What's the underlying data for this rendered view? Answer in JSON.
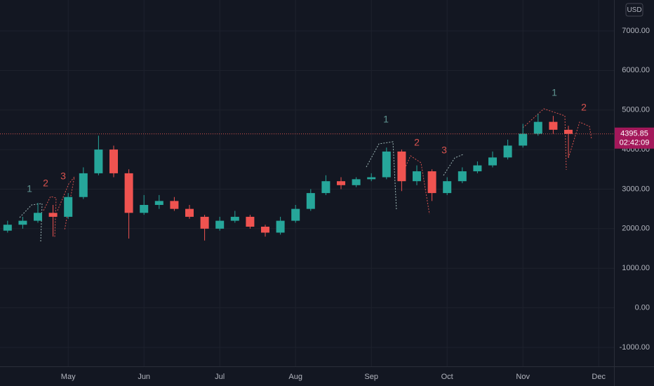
{
  "chart_data": {
    "type": "candlestick",
    "currency": "USD",
    "categories": [
      null,
      null,
      null,
      null,
      "May",
      null,
      null,
      null,
      null,
      "Jun",
      null,
      null,
      null,
      null,
      "Jul",
      null,
      null,
      null,
      null,
      "Aug",
      null,
      null,
      null,
      null,
      "Sep",
      null,
      null,
      null,
      null,
      "Oct",
      null,
      null,
      null,
      null,
      "Nov",
      null,
      null,
      null,
      null,
      "Dec"
    ],
    "open": [
      1950,
      2100,
      2200,
      2400,
      2300,
      2800,
      3400,
      4000,
      3400,
      2400,
      2600,
      2700,
      2500,
      2300,
      2000,
      2200,
      2300,
      2050,
      1900,
      2200,
      2500,
      2900,
      3200,
      3100,
      3250,
      3300,
      3950,
      3200,
      3450,
      2900,
      3200,
      3450,
      3600,
      3800,
      4100,
      4400,
      4700,
      4500,
      null,
      null
    ],
    "high": [
      2200,
      2300,
      2650,
      2600,
      2900,
      3550,
      4350,
      4100,
      3500,
      2850,
      2850,
      2800,
      2600,
      2350,
      2300,
      2450,
      2350,
      2100,
      2300,
      2600,
      3000,
      3350,
      3300,
      3300,
      3400,
      4050,
      4000,
      3600,
      3500,
      3300,
      3550,
      3700,
      3950,
      4250,
      4650,
      4900,
      4850,
      4600,
      null,
      null
    ],
    "low": [
      1900,
      2000,
      2150,
      1800,
      2250,
      2750,
      3350,
      3300,
      1750,
      2350,
      2500,
      2450,
      2250,
      1700,
      1950,
      2150,
      2000,
      1800,
      1850,
      2150,
      2450,
      2850,
      3000,
      3050,
      3200,
      3250,
      2950,
      3100,
      2700,
      2850,
      3150,
      3400,
      3550,
      3750,
      4050,
      4350,
      4400,
      3800,
      null,
      null
    ],
    "close": [
      2100,
      2200,
      2400,
      2300,
      2800,
      3400,
      4000,
      3400,
      2400,
      2600,
      2700,
      2500,
      2300,
      2000,
      2200,
      2300,
      2050,
      1900,
      2200,
      2500,
      2900,
      3200,
      3100,
      3250,
      3300,
      3950,
      3200,
      3450,
      2900,
      3200,
      3450,
      3600,
      3800,
      4100,
      4400,
      4700,
      4500,
      4395.85,
      null,
      null
    ],
    "up_color": "#26a69a",
    "down_color": "#ef5350",
    "ylim": [
      -1480,
      7780
    ],
    "yticks": [
      {
        "value": -1000,
        "label": "-1000.00"
      },
      {
        "value": 0,
        "label": "0.00"
      },
      {
        "value": 1000,
        "label": "1000.00"
      },
      {
        "value": 2000,
        "label": "2000.00"
      },
      {
        "value": 3000,
        "label": "3000.00"
      },
      {
        "value": 4000,
        "label": "4000.00"
      },
      {
        "value": 5000,
        "label": "5000.00"
      },
      {
        "value": 6000,
        "label": "6000.00"
      },
      {
        "value": 7000,
        "label": "7000.00"
      }
    ],
    "grid": true,
    "last_price": 4395.85,
    "countdown": "02:42:09",
    "annotations": [
      {
        "text": "1",
        "color": "#5f9391"
      },
      {
        "text": "2",
        "color": "#d9534f"
      },
      {
        "text": "3",
        "color": "#d9534f"
      },
      {
        "text": "1",
        "color": "#5f9391"
      },
      {
        "text": "2",
        "color": "#d9534f"
      },
      {
        "text": "3",
        "color": "#d9534f"
      },
      {
        "text": "1",
        "color": "#5f9391"
      },
      {
        "text": "2",
        "color": "#d9534f"
      }
    ]
  }
}
